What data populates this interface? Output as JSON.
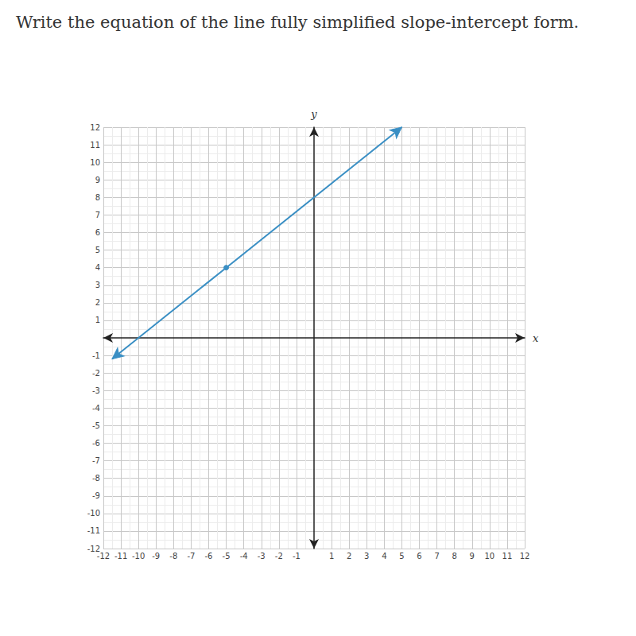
{
  "chart_data": {
    "type": "line",
    "title": "Write the equation of the line fully simplified slope-intercept form.",
    "x_label": "x",
    "y_label": "y",
    "x": [
      -11.5,
      -5,
      5
    ],
    "values": [
      -1.2,
      4,
      12
    ],
    "color": "#3a8fc4",
    "marker": "circle",
    "xlim": [
      -12,
      12
    ],
    "ylim": [
      -12,
      12
    ],
    "xticks": [
      -12,
      -11,
      -10,
      -9,
      -8,
      -7,
      -6,
      -5,
      -4,
      -3,
      -2,
      -1,
      1,
      2,
      3,
      4,
      5,
      6,
      7,
      8,
      9,
      10,
      11,
      12
    ],
    "yticks": [
      -12,
      -11,
      -10,
      -9,
      -8,
      -7,
      -6,
      -5,
      -4,
      -3,
      -2,
      -1,
      1,
      2,
      3,
      4,
      5,
      6,
      7,
      8,
      9,
      10,
      11,
      12
    ],
    "grid": true
  }
}
